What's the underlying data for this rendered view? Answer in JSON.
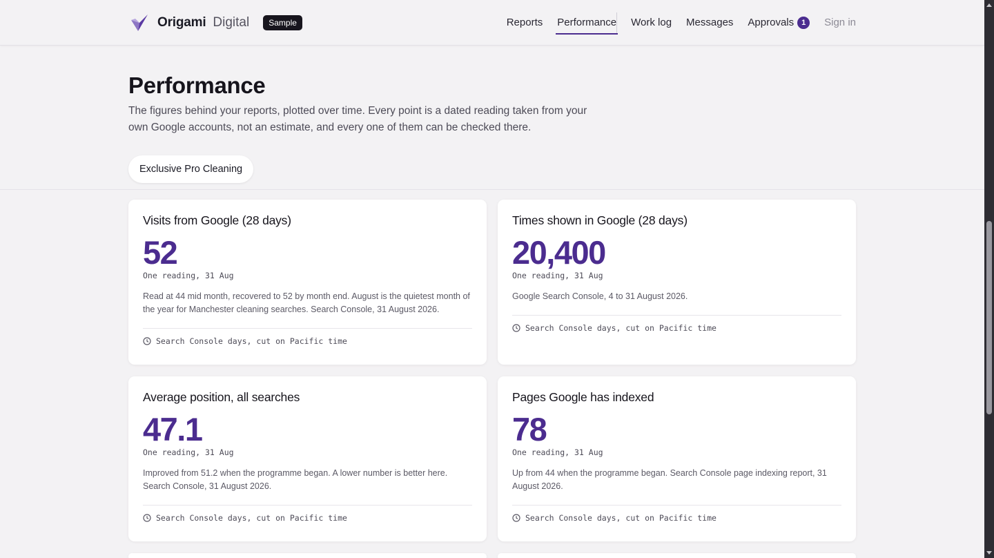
{
  "header": {
    "brand_name": "Origami",
    "brand_sub": "Digital",
    "badge": "Sample",
    "nav": [
      {
        "label": "Reports"
      },
      {
        "label": "Performance"
      },
      {
        "label": "Work log"
      },
      {
        "label": "Messages"
      },
      {
        "label": "Approvals",
        "count": "1"
      },
      {
        "label": "Sign in"
      }
    ]
  },
  "hero": {
    "title": "Performance",
    "description": "The figures behind your reports, plotted over time. Every point is a dated reading taken from your own Google accounts, not an estimate, and every one of them can be checked there.",
    "client": "Exclusive Pro Cleaning"
  },
  "cards": [
    {
      "title": "Visits from Google (28 days)",
      "value": "52",
      "reading": "One reading, 31 Aug",
      "note": "Read at 44 mid month, recovered to 52 by month end. August is the quietest month of the year for Manchester cleaning searches. Search Console, 31 August 2026.",
      "foot": "Search Console days, cut on Pacific time"
    },
    {
      "title": "Times shown in Google (28 days)",
      "value": "20,400",
      "reading": "One reading, 31 Aug",
      "note": "Google Search Console, 4 to 31 August 2026.",
      "foot": "Search Console days, cut on Pacific time"
    },
    {
      "title": "Average position, all searches",
      "value": "47.1",
      "reading": "One reading, 31 Aug",
      "note": "Improved from 51.2 when the programme began. A lower number is better here. Search Console, 31 August 2026.",
      "foot": "Search Console days, cut on Pacific time"
    },
    {
      "title": "Pages Google has indexed",
      "value": "78",
      "reading": "One reading, 31 Aug",
      "note": "Up from 44 when the programme began. Search Console page indexing report, 31 August 2026.",
      "foot": "Search Console days, cut on Pacific time"
    }
  ],
  "colors": {
    "accent": "#4b2c8f",
    "background": "#f3f2f4",
    "card": "#ffffff"
  }
}
